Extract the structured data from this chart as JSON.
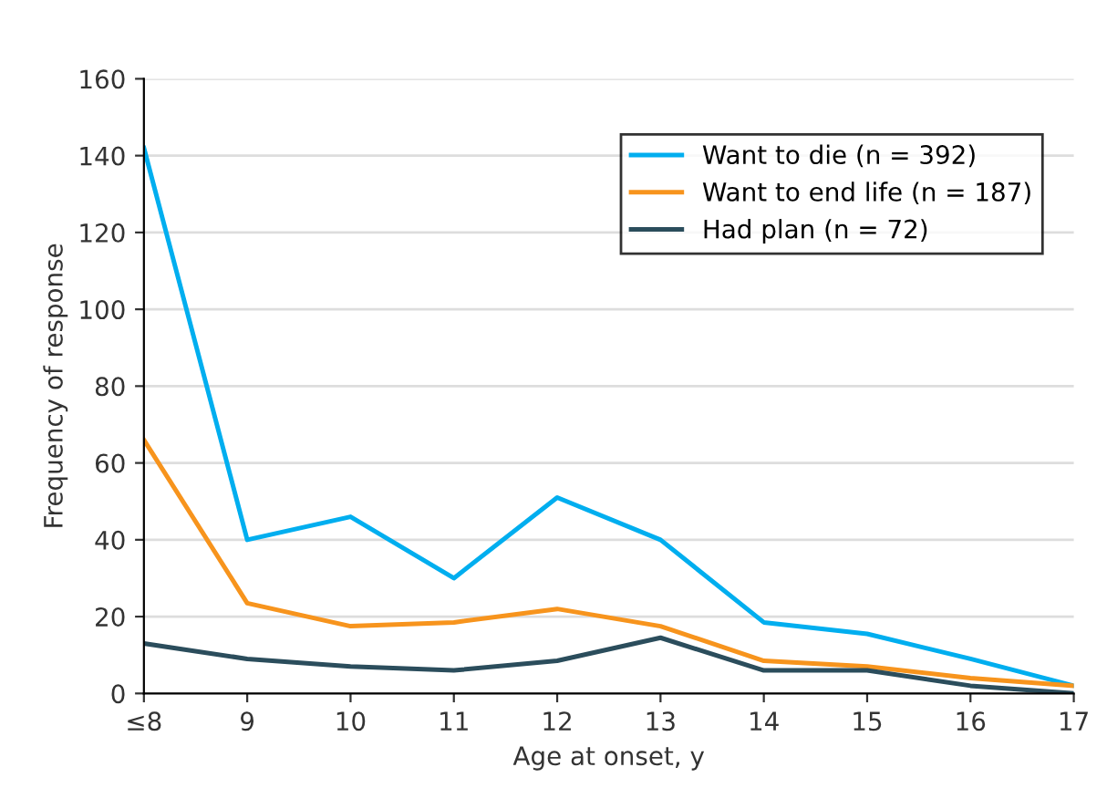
{
  "chart_data": {
    "type": "line",
    "xlabel": "Age at onset, y",
    "ylabel": "Frequency of response",
    "categories": [
      "≤8",
      "9",
      "10",
      "11",
      "12",
      "13",
      "14",
      "15",
      "16",
      "17"
    ],
    "series": [
      {
        "name": "Want to die (n = 392)",
        "color": "#00aeef",
        "values": [
          142,
          40,
          46,
          30,
          51,
          40,
          18.5,
          15.5,
          9,
          2
        ]
      },
      {
        "name": "Want to end life (n = 187)",
        "color": "#f7941d",
        "values": [
          66,
          23.5,
          17.5,
          18.5,
          22,
          17.5,
          8.5,
          7,
          4,
          2
        ]
      },
      {
        "name": "Had plan (n = 72)",
        "color": "#2b4d5c",
        "values": [
          13,
          9,
          7,
          6,
          8.5,
          14.5,
          6,
          6,
          2,
          0
        ]
      }
    ],
    "ylim": [
      0,
      160
    ],
    "yticks": [
      0,
      20,
      40,
      60,
      80,
      100,
      120,
      140,
      160
    ],
    "grid": "y",
    "legend": "top right",
    "marker": "none",
    "line_style": "solid"
  }
}
